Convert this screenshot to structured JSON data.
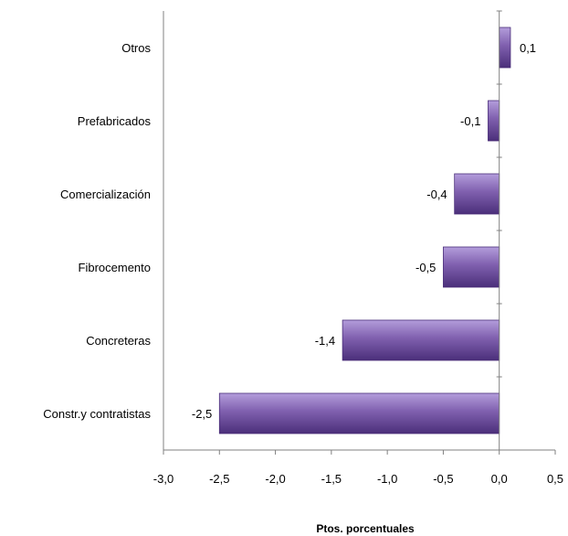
{
  "chart_data": {
    "type": "bar",
    "orientation": "horizontal",
    "categories": [
      "Otros",
      "Prefabricados",
      "Comercialización",
      "Fibrocemento",
      "Concreteras",
      "Constr.y contratistas"
    ],
    "values": [
      0.1,
      -0.1,
      -0.4,
      -0.5,
      -1.4,
      -2.5
    ],
    "data_labels": [
      "0,1",
      "-0,1",
      "-0,4",
      "-0,5",
      "-1,4",
      "-2,5"
    ],
    "xlim": [
      -3.0,
      0.5
    ],
    "xticks": [
      -3.0,
      -2.5,
      -2.0,
      -1.5,
      -1.0,
      -0.5,
      0.0,
      0.5
    ],
    "xtick_labels": [
      "-3,0",
      "-2,5",
      "-2,0",
      "-1,5",
      "-1,0",
      "-0,5",
      "0,0",
      "0,5"
    ],
    "xlabel": "Ptos. porcentuales",
    "grid": false,
    "legend": "none",
    "bar_color": "#7f5fae",
    "bar_color_light": "#b39ddb",
    "bar_color_dark": "#4b2f7a"
  }
}
